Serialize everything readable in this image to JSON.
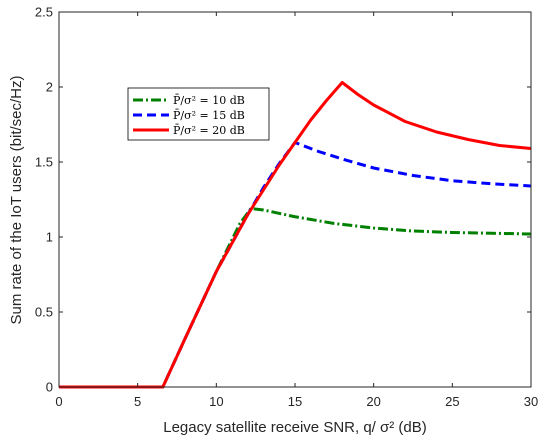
{
  "chart_data": {
    "type": "line",
    "xlabel": "Legacy satellite receive SNR, q/ σ² (dB)",
    "ylabel": "Sum rate of the IoT users (bit/sec/Hz)",
    "xlim": [
      0,
      30
    ],
    "ylim": [
      0,
      2.5
    ],
    "xticks": [
      0,
      5,
      10,
      15,
      20,
      25,
      30
    ],
    "yticks": [
      0,
      0.5,
      1,
      1.5,
      2,
      2.5
    ],
    "xtick_labels": [
      "0",
      "5",
      "10",
      "15",
      "20",
      "25",
      "30"
    ],
    "ytick_labels": [
      "0",
      "0.5",
      "1",
      "1.5",
      "2",
      "2.5"
    ],
    "grid": false,
    "legend_position": "upper-left",
    "series": [
      {
        "name": "P̄/σ² = 10 dB",
        "color": "#008000",
        "style": "dash-dot",
        "x": [
          0,
          6.6,
          8,
          10,
          11.5,
          12.2,
          13,
          15,
          17.5,
          20,
          22.5,
          25,
          27.5,
          30
        ],
        "y": [
          0,
          0,
          0.32,
          0.77,
          1.09,
          1.19,
          1.18,
          1.135,
          1.09,
          1.06,
          1.04,
          1.03,
          1.025,
          1.02
        ]
      },
      {
        "name": "P̄/σ² = 15 dB",
        "color": "#0000ff",
        "style": "dashed",
        "x": [
          0,
          6.6,
          8,
          10,
          12,
          13,
          14,
          15,
          16.5,
          18,
          20,
          22.5,
          25,
          27.5,
          30
        ],
        "y": [
          0,
          0,
          0.32,
          0.77,
          1.15,
          1.33,
          1.49,
          1.63,
          1.57,
          1.52,
          1.46,
          1.41,
          1.375,
          1.355,
          1.34
        ]
      },
      {
        "name": "P̄/σ² = 20 dB",
        "color": "#ff0000",
        "style": "solid",
        "x": [
          0,
          6.6,
          8,
          10,
          12,
          14,
          15,
          16,
          17,
          18,
          19,
          20,
          22,
          24,
          26,
          28,
          30
        ],
        "y": [
          0,
          0,
          0.32,
          0.77,
          1.15,
          1.48,
          1.63,
          1.78,
          1.91,
          2.03,
          1.95,
          1.88,
          1.77,
          1.7,
          1.65,
          1.61,
          1.59
        ]
      }
    ]
  }
}
